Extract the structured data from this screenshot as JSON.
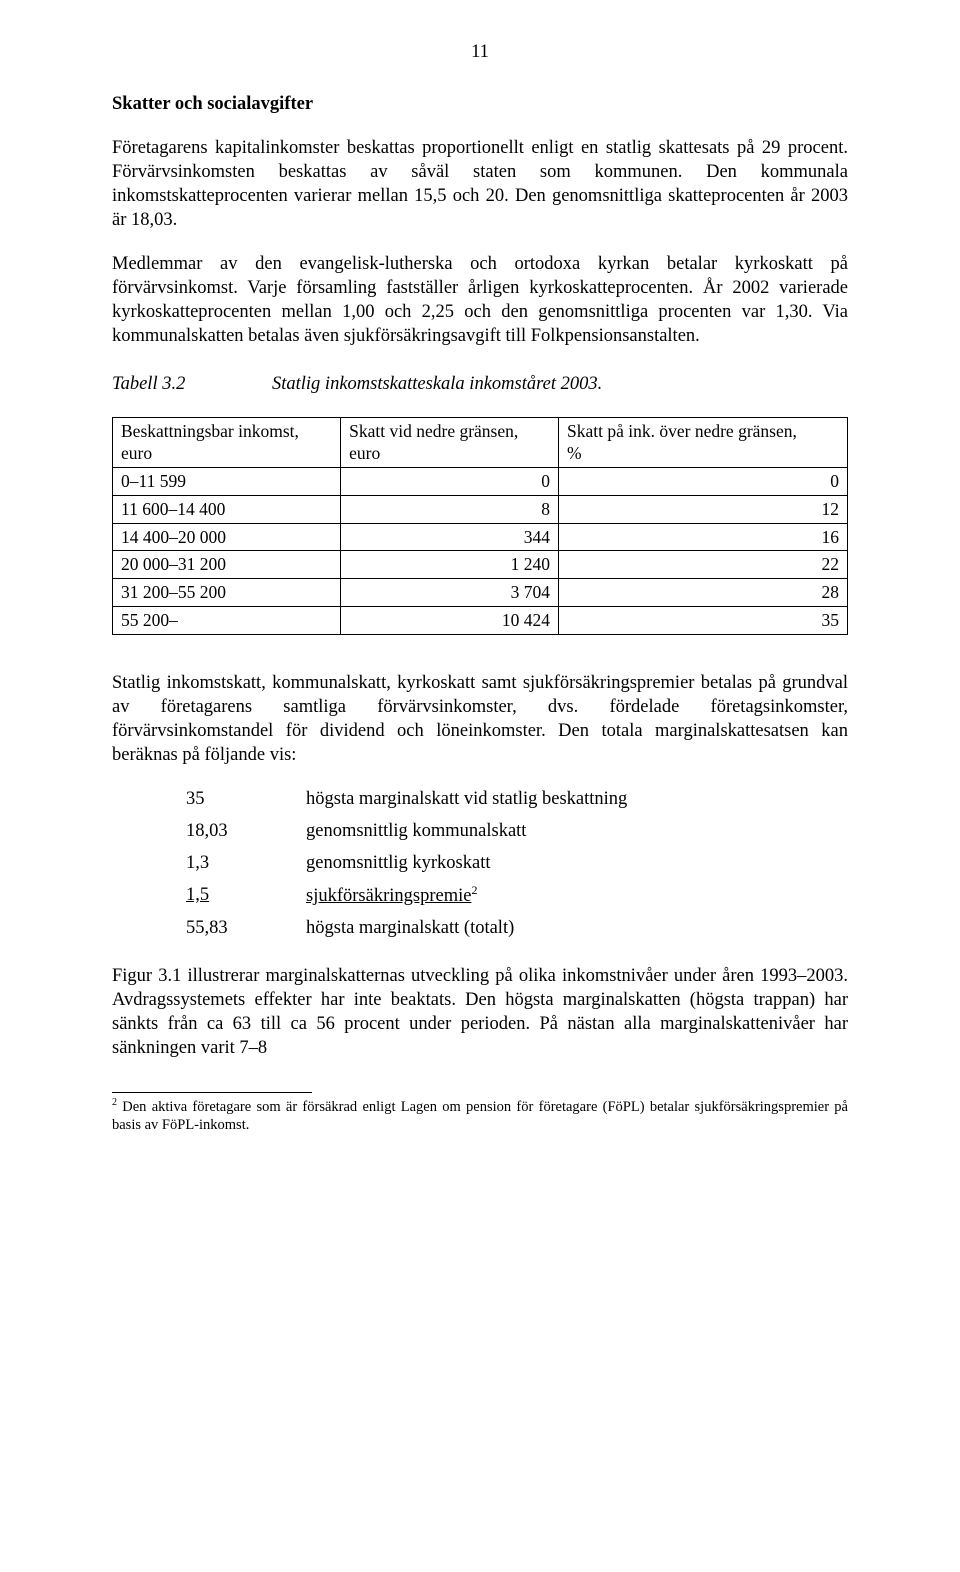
{
  "page": {
    "number": "11"
  },
  "heading": "Skatter och socialavgifter",
  "paragraphs": {
    "p1": "Företagarens kapitalinkomster beskattas proportionellt enligt en statlig skattesats på 29 procent. Förvärvsinkomsten beskattas av såväl staten som kommunen. Den kommunala inkomstskatteprocenten varierar mellan 15,5 och 20. Den genomsnittliga skatteprocenten år 2003 är 18,03.",
    "p2": "Medlemmar av den evangelisk-lutherska och ortodoxa kyrkan betalar kyrkoskatt på förvärvsinkomst. Varje församling fastställer årligen kyrkoskatteprocenten. År 2002 varierade kyrkoskatteprocenten mellan 1,00 och 2,25 och den genomsnittliga procenten var 1,30. Via kommunalskatten betalas även sjukförsäkringsavgift till Folkpensionsanstalten.",
    "p3": "Statlig inkomstskatt, kommunalskatt, kyrkoskatt samt sjukförsäkringspremier betalas på grundval av företagarens samtliga förvärvsinkomster, dvs. fördelade företagsinkomster, förvärvsinkomstandel för dividend och löneinkomster. Den totala marginalskattesatsen kan beräknas på följande vis:",
    "p4": "Figur 3.1 illustrerar marginalskatternas utveckling på olika inkomstnivåer under åren 1993–2003. Avdragssystemets effekter har inte beaktats. Den högsta marginalskatten (högsta trappan) har sänkts från ca 63 till ca 56 procent under perioden. På nästan alla marginalskattenivåer har sänkningen varit 7–8"
  },
  "tableCaption": {
    "label": "Tabell 3.2",
    "title": "Statlig inkomstskatteskala inkomståret 2003."
  },
  "table": {
    "headers": {
      "col1a": "Beskattningsbar inkomst,",
      "col1b": "euro",
      "col2a": "Skatt vid nedre gränsen,",
      "col2b": "euro",
      "col3a": "Skatt på ink. över nedre gränsen,",
      "col3b": "%"
    },
    "rows": [
      {
        "c1": "0–11 599",
        "c2": "0",
        "c3": "0"
      },
      {
        "c1": "11 600–14 400",
        "c2": "8",
        "c3": "12"
      },
      {
        "c1": "14 400–20 000",
        "c2": "344",
        "c3": "16"
      },
      {
        "c1": "20 000–31 200",
        "c2": "1 240",
        "c3": "22"
      },
      {
        "c1": "31 200–55 200",
        "c2": "3 704",
        "c3": "28"
      },
      {
        "c1": "55 200–",
        "c2": "10 424",
        "c3": "35"
      }
    ]
  },
  "marginal": {
    "rows": [
      {
        "n": "35",
        "d": "högsta marginalskatt vid statlig beskattning"
      },
      {
        "n": "18,03",
        "d": "genomsnittlig kommunalskatt"
      },
      {
        "n": "1,3",
        "d": "genomsnittlig kyrkoskatt"
      }
    ],
    "underline": {
      "n": "1,5",
      "d": "sjukförsäkringspremie",
      "sup": "2"
    },
    "total": {
      "n": "55,83",
      "d": "högsta marginalskatt (totalt)"
    }
  },
  "footnote": {
    "marker": "2",
    "text": " Den aktiva företagare som är försäkrad enligt Lagen om pension för företagare (FöPL) betalar sjukförsäkringspremier på basis av FöPL-inkomst."
  }
}
